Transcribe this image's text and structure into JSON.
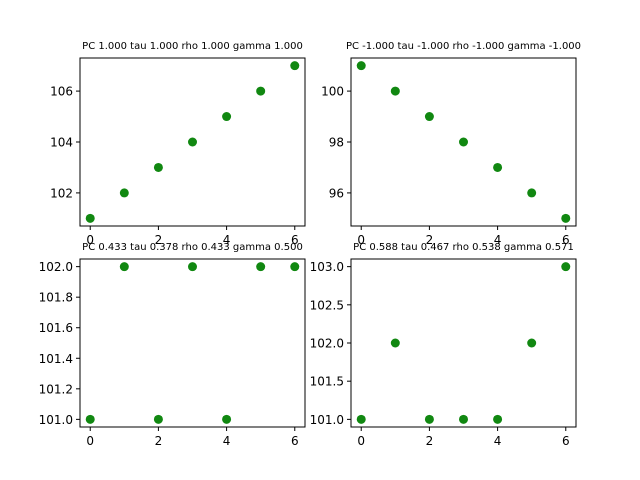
{
  "chart_data": [
    {
      "type": "scatter",
      "title": "PC 1.000 tau 1.000 rho 1.000 gamma 1.000",
      "x": [
        0,
        1,
        2,
        3,
        4,
        5,
        6
      ],
      "y": [
        101,
        102,
        103,
        104,
        105,
        106,
        107
      ],
      "xlim": [
        -0.3,
        6.3
      ],
      "ylim": [
        100.7,
        107.3
      ],
      "xticks": [
        0,
        2,
        4,
        6
      ],
      "xtick_labels": [
        "0",
        "2",
        "4",
        "6"
      ],
      "yticks": [
        102,
        104,
        106
      ],
      "ytick_labels": [
        "102",
        "104",
        "106"
      ],
      "color": "#118811",
      "grid": false
    },
    {
      "type": "scatter",
      "title": "PC -1.000 tau -1.000 rho -1.000 gamma -1.000",
      "x": [
        0,
        1,
        2,
        3,
        4,
        5,
        6
      ],
      "y": [
        101,
        100,
        99,
        98,
        97,
        96,
        95
      ],
      "xlim": [
        -0.3,
        6.3
      ],
      "ylim": [
        94.7,
        101.3
      ],
      "xticks": [
        0,
        2,
        4,
        6
      ],
      "xtick_labels": [
        "0",
        "2",
        "4",
        "6"
      ],
      "yticks": [
        96,
        98,
        100
      ],
      "ytick_labels": [
        "96",
        "98",
        "100"
      ],
      "color": "#118811",
      "grid": false
    },
    {
      "type": "scatter",
      "title": "PC 0.433 tau 0.378 rho 0.433 gamma 0.500",
      "x": [
        0,
        1,
        2,
        3,
        4,
        5,
        6
      ],
      "y": [
        101,
        102,
        101,
        102,
        101,
        102,
        102
      ],
      "xlim": [
        -0.3,
        6.3
      ],
      "ylim": [
        100.95,
        102.05
      ],
      "xticks": [
        0,
        2,
        4,
        6
      ],
      "xtick_labels": [
        "0",
        "2",
        "4",
        "6"
      ],
      "yticks": [
        101.0,
        101.2,
        101.4,
        101.6,
        101.8,
        102.0
      ],
      "ytick_labels": [
        "101.0",
        "101.2",
        "101.4",
        "101.6",
        "101.8",
        "102.0"
      ],
      "color": "#118811",
      "grid": false
    },
    {
      "type": "scatter",
      "title": "PC 0.588 tau 0.467 rho 0.538 gamma 0.571",
      "x": [
        0,
        1,
        2,
        3,
        4,
        5,
        6
      ],
      "y": [
        101,
        102,
        101,
        101,
        101,
        102,
        103
      ],
      "xlim": [
        -0.3,
        6.3
      ],
      "ylim": [
        100.9,
        103.1
      ],
      "xticks": [
        0,
        2,
        4,
        6
      ],
      "xtick_labels": [
        "0",
        "2",
        "4",
        "6"
      ],
      "yticks": [
        101.0,
        101.5,
        102.0,
        102.5,
        103.0
      ],
      "ytick_labels": [
        "101.0",
        "101.5",
        "102.0",
        "102.5",
        "103.0"
      ],
      "color": "#118811",
      "grid": false
    }
  ]
}
